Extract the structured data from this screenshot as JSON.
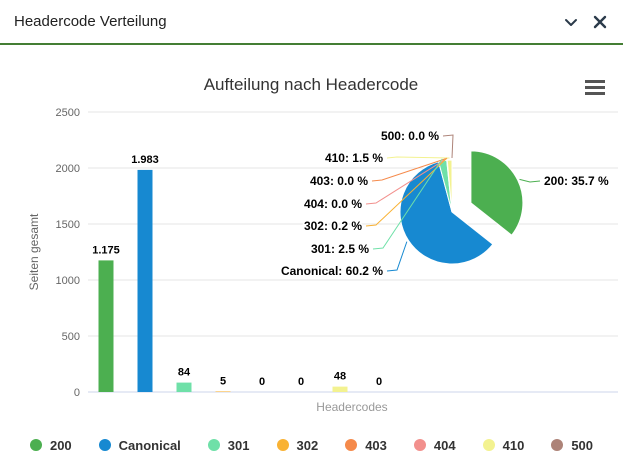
{
  "widget": {
    "title": "Headercode Verteilung",
    "accent_color": "#447e34",
    "icons": {
      "collapse": "chevron-down",
      "close": "x"
    }
  },
  "chart_data": {
    "type": "bar+pie",
    "title": "Aufteilung nach Headercode",
    "xlabel": "Headercodes",
    "ylabel": "Seiten gesamt",
    "ylim": [
      0,
      2500
    ],
    "ytick_interval": 500,
    "grid": true,
    "legend_position": "bottom",
    "categories": [
      "200",
      "Canonical",
      "301",
      "302",
      "403",
      "404",
      "410",
      "500"
    ],
    "values": [
      1175,
      1983,
      84,
      5,
      0,
      0,
      48,
      0
    ],
    "value_labels": [
      "1.175",
      "1.983",
      "84",
      "5",
      "0",
      "0",
      "48",
      "0"
    ],
    "percent_labels": [
      "35.7",
      "60.2",
      "2.5",
      "0.2",
      "0.0",
      "0.0",
      "1.5",
      "0.0"
    ],
    "colors": [
      "#4caf50",
      "#1789d1",
      "#6fe0a8",
      "#f9b234",
      "#f58a4b",
      "#f2908d",
      "#f3f290",
      "#ad8378"
    ],
    "pie": {
      "exploded_slice": "200",
      "percent_suffix": " %"
    },
    "axis_colors": {
      "grid": "#e6e6e6",
      "axis_line": "#ccd6eb",
      "tick_text": "#666666",
      "title_text": "#333333"
    }
  }
}
